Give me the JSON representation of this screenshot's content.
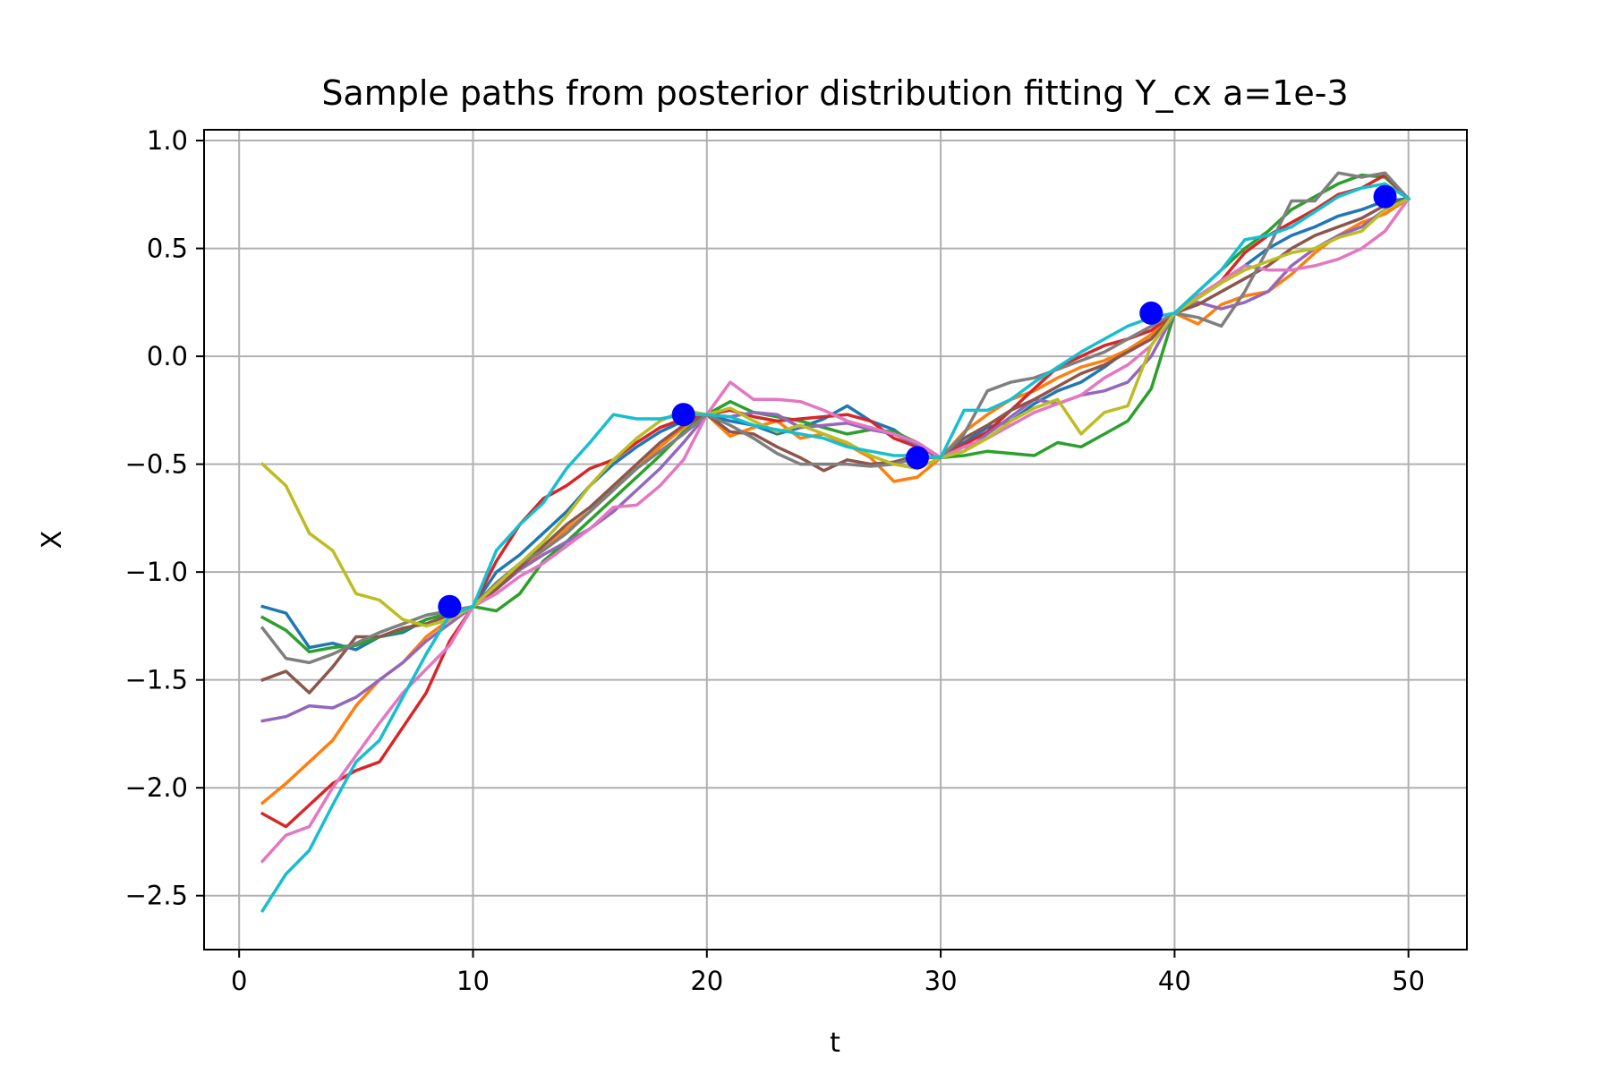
{
  "chart_data": {
    "type": "line",
    "title": "Sample paths from posterior distribution fitting Y_cx a=1e-3",
    "xlabel": "t",
    "ylabel": "X",
    "xlim": [
      -1.5,
      52.5
    ],
    "ylim": [
      -2.75,
      1.05
    ],
    "xticks": [
      0,
      10,
      20,
      30,
      40,
      50
    ],
    "xtick_labels": [
      "0",
      "10",
      "20",
      "30",
      "40",
      "50"
    ],
    "yticks": [
      1.0,
      0.5,
      0.0,
      -0.5,
      -1.0,
      -1.5,
      -2.0,
      -2.5
    ],
    "ytick_labels": [
      "1.0",
      "0.5",
      "0.0",
      "−0.5",
      "−1.0",
      "−1.5",
      "−2.0",
      "−2.5"
    ],
    "grid": true,
    "legend": "none",
    "observations": {
      "color": "#0000ff",
      "points": [
        {
          "x": 9,
          "y": -1.16
        },
        {
          "x": 19,
          "y": -0.27
        },
        {
          "x": 29,
          "y": -0.47
        },
        {
          "x": 39,
          "y": 0.2
        },
        {
          "x": 49,
          "y": 0.74
        }
      ]
    },
    "series_colors": [
      "#1f77b4",
      "#ff7f0e",
      "#2ca02c",
      "#d62728",
      "#9467bd",
      "#8c564b",
      "#e377c2",
      "#7f7f7f",
      "#bcbd22",
      "#17becf"
    ],
    "x": [
      1,
      2,
      3,
      4,
      5,
      6,
      7,
      8,
      9,
      10,
      11,
      12,
      13,
      14,
      15,
      16,
      17,
      18,
      19,
      20,
      21,
      22,
      23,
      24,
      25,
      26,
      27,
      28,
      29,
      30,
      31,
      32,
      33,
      34,
      35,
      36,
      37,
      38,
      39,
      40,
      41,
      42,
      43,
      44,
      45,
      46,
      47,
      48,
      49,
      50
    ],
    "series": [
      {
        "color": "#1f77b4",
        "values": [
          -1.16,
          -1.19,
          -1.35,
          -1.33,
          -1.36,
          -1.3,
          -1.28,
          -1.22,
          -1.19,
          -1.16,
          -1.0,
          -0.92,
          -0.82,
          -0.72,
          -0.6,
          -0.5,
          -0.42,
          -0.35,
          -0.3,
          -0.27,
          -0.3,
          -0.32,
          -0.36,
          -0.33,
          -0.29,
          -0.23,
          -0.3,
          -0.34,
          -0.42,
          -0.47,
          -0.4,
          -0.33,
          -0.3,
          -0.22,
          -0.16,
          -0.12,
          -0.05,
          0.03,
          0.1,
          0.2,
          0.27,
          0.34,
          0.42,
          0.5,
          0.56,
          0.6,
          0.65,
          0.68,
          0.72,
          0.73
        ]
      },
      {
        "color": "#ff7f0e",
        "values": [
          -2.07,
          -1.98,
          -1.88,
          -1.78,
          -1.62,
          -1.5,
          -1.42,
          -1.3,
          -1.22,
          -1.16,
          -1.05,
          -0.98,
          -0.9,
          -0.8,
          -0.72,
          -0.62,
          -0.52,
          -0.42,
          -0.33,
          -0.27,
          -0.37,
          -0.33,
          -0.3,
          -0.38,
          -0.36,
          -0.41,
          -0.47,
          -0.58,
          -0.56,
          -0.47,
          -0.35,
          -0.27,
          -0.2,
          -0.16,
          -0.1,
          -0.05,
          -0.02,
          0.03,
          0.1,
          0.2,
          0.15,
          0.24,
          0.28,
          0.3,
          0.38,
          0.48,
          0.56,
          0.62,
          0.66,
          0.73
        ]
      },
      {
        "color": "#2ca02c",
        "values": [
          -1.21,
          -1.27,
          -1.37,
          -1.35,
          -1.34,
          -1.3,
          -1.27,
          -1.22,
          -1.19,
          -1.16,
          -1.18,
          -1.1,
          -0.95,
          -0.86,
          -0.76,
          -0.66,
          -0.56,
          -0.46,
          -0.35,
          -0.27,
          -0.21,
          -0.26,
          -0.28,
          -0.3,
          -0.33,
          -0.36,
          -0.34,
          -0.35,
          -0.4,
          -0.47,
          -0.46,
          -0.44,
          -0.45,
          -0.46,
          -0.4,
          -0.42,
          -0.36,
          -0.3,
          -0.15,
          0.2,
          0.3,
          0.4,
          0.5,
          0.58,
          0.68,
          0.74,
          0.8,
          0.84,
          0.83,
          0.73
        ]
      },
      {
        "color": "#d62728",
        "values": [
          -2.12,
          -2.18,
          -2.08,
          -1.98,
          -1.92,
          -1.88,
          -1.72,
          -1.56,
          -1.32,
          -1.16,
          -0.95,
          -0.78,
          -0.66,
          -0.6,
          -0.52,
          -0.48,
          -0.4,
          -0.33,
          -0.29,
          -0.27,
          -0.25,
          -0.28,
          -0.3,
          -0.29,
          -0.28,
          -0.27,
          -0.3,
          -0.38,
          -0.42,
          -0.47,
          -0.41,
          -0.35,
          -0.25,
          -0.15,
          -0.05,
          0.0,
          0.05,
          0.08,
          0.12,
          0.2,
          0.27,
          0.35,
          0.48,
          0.56,
          0.62,
          0.68,
          0.75,
          0.78,
          0.84,
          0.73
        ]
      },
      {
        "color": "#9467bd",
        "values": [
          -1.69,
          -1.67,
          -1.62,
          -1.63,
          -1.58,
          -1.5,
          -1.42,
          -1.32,
          -1.24,
          -1.16,
          -1.08,
          -0.99,
          -0.92,
          -0.86,
          -0.8,
          -0.72,
          -0.62,
          -0.52,
          -0.4,
          -0.27,
          -0.28,
          -0.26,
          -0.27,
          -0.33,
          -0.32,
          -0.31,
          -0.34,
          -0.36,
          -0.41,
          -0.47,
          -0.44,
          -0.36,
          -0.28,
          -0.2,
          -0.22,
          -0.18,
          -0.16,
          -0.12,
          0.0,
          0.2,
          0.25,
          0.22,
          0.25,
          0.3,
          0.42,
          0.5,
          0.56,
          0.6,
          0.68,
          0.73
        ]
      },
      {
        "color": "#8c564b",
        "values": [
          -1.5,
          -1.46,
          -1.56,
          -1.44,
          -1.3,
          -1.3,
          -1.26,
          -1.24,
          -1.2,
          -1.16,
          -1.08,
          -0.98,
          -0.88,
          -0.78,
          -0.7,
          -0.6,
          -0.5,
          -0.4,
          -0.32,
          -0.27,
          -0.35,
          -0.36,
          -0.42,
          -0.47,
          -0.53,
          -0.48,
          -0.5,
          -0.49,
          -0.46,
          -0.47,
          -0.38,
          -0.32,
          -0.25,
          -0.2,
          -0.14,
          -0.08,
          -0.04,
          0.02,
          0.08,
          0.2,
          0.24,
          0.3,
          0.36,
          0.42,
          0.5,
          0.56,
          0.6,
          0.64,
          0.7,
          0.73
        ]
      },
      {
        "color": "#e377c2",
        "values": [
          -2.34,
          -2.22,
          -2.18,
          -2.0,
          -1.85,
          -1.7,
          -1.56,
          -1.45,
          -1.34,
          -1.16,
          -1.1,
          -1.02,
          -0.96,
          -0.88,
          -0.8,
          -0.7,
          -0.69,
          -0.6,
          -0.48,
          -0.27,
          -0.12,
          -0.2,
          -0.2,
          -0.21,
          -0.25,
          -0.3,
          -0.33,
          -0.36,
          -0.4,
          -0.47,
          -0.42,
          -0.38,
          -0.32,
          -0.26,
          -0.22,
          -0.18,
          -0.1,
          -0.04,
          0.05,
          0.2,
          0.28,
          0.35,
          0.42,
          0.4,
          0.4,
          0.42,
          0.45,
          0.5,
          0.58,
          0.73
        ]
      },
      {
        "color": "#7f7f7f",
        "values": [
          -1.26,
          -1.4,
          -1.42,
          -1.38,
          -1.33,
          -1.28,
          -1.24,
          -1.2,
          -1.18,
          -1.16,
          -1.05,
          -0.96,
          -0.9,
          -0.82,
          -0.72,
          -0.62,
          -0.52,
          -0.44,
          -0.36,
          -0.27,
          -0.32,
          -0.38,
          -0.45,
          -0.5,
          -0.5,
          -0.5,
          -0.51,
          -0.5,
          -0.47,
          -0.47,
          -0.36,
          -0.16,
          -0.12,
          -0.1,
          -0.06,
          -0.02,
          0.02,
          0.08,
          0.14,
          0.2,
          0.18,
          0.14,
          0.3,
          0.5,
          0.72,
          0.72,
          0.85,
          0.83,
          0.85,
          0.73
        ]
      },
      {
        "color": "#bcbd22",
        "values": [
          -0.5,
          -0.6,
          -0.82,
          -0.9,
          -1.1,
          -1.13,
          -1.22,
          -1.25,
          -1.22,
          -1.16,
          -1.06,
          -0.96,
          -0.86,
          -0.74,
          -0.6,
          -0.48,
          -0.38,
          -0.3,
          -0.25,
          -0.27,
          -0.24,
          -0.3,
          -0.35,
          -0.32,
          -0.36,
          -0.4,
          -0.46,
          -0.5,
          -0.52,
          -0.47,
          -0.44,
          -0.38,
          -0.3,
          -0.24,
          -0.2,
          -0.36,
          -0.26,
          -0.23,
          0.05,
          0.2,
          0.27,
          0.34,
          0.4,
          0.44,
          0.48,
          0.5,
          0.55,
          0.58,
          0.68,
          0.73
        ]
      },
      {
        "color": "#17becf",
        "values": [
          -2.57,
          -2.4,
          -2.29,
          -2.08,
          -1.88,
          -1.78,
          -1.58,
          -1.38,
          -1.2,
          -1.16,
          -0.9,
          -0.78,
          -0.68,
          -0.52,
          -0.4,
          -0.27,
          -0.29,
          -0.29,
          -0.27,
          -0.27,
          -0.28,
          -0.32,
          -0.34,
          -0.36,
          -0.38,
          -0.42,
          -0.44,
          -0.46,
          -0.46,
          -0.47,
          -0.25,
          -0.25,
          -0.2,
          -0.12,
          -0.05,
          0.02,
          0.08,
          0.14,
          0.18,
          0.2,
          0.3,
          0.4,
          0.54,
          0.56,
          0.6,
          0.67,
          0.74,
          0.78,
          0.8,
          0.73
        ]
      }
    ]
  }
}
